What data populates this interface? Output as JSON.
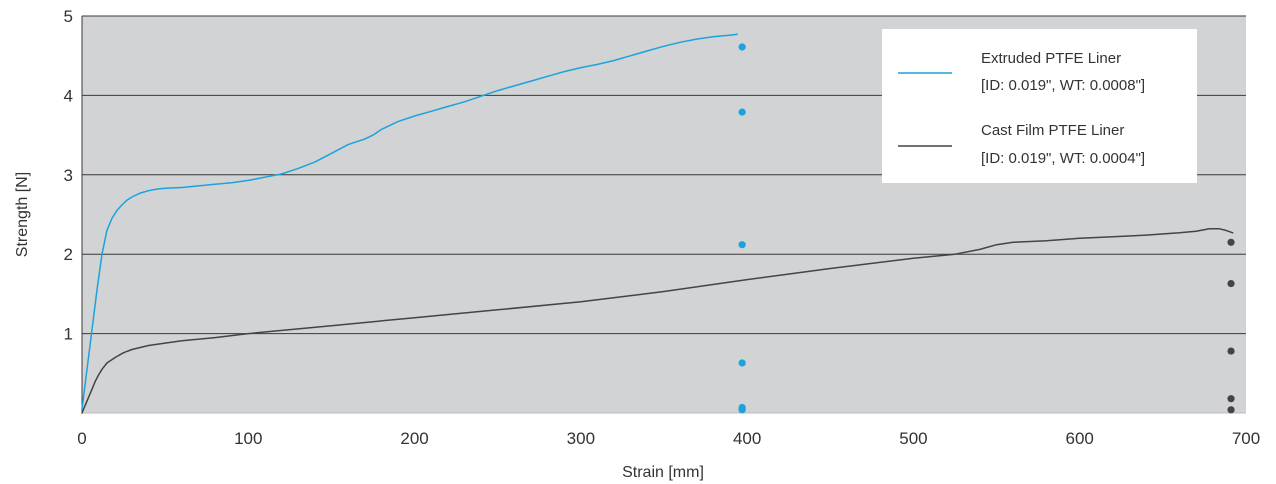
{
  "chart_data": {
    "type": "line",
    "xlabel": "Strain [mm]",
    "ylabel": "Strength [N]",
    "xlim": [
      0,
      700
    ],
    "ylim": [
      0,
      5
    ],
    "x_ticks": [
      0,
      100,
      200,
      300,
      400,
      500,
      600,
      700
    ],
    "y_ticks": [
      1,
      2,
      3,
      4,
      5
    ],
    "x_tick_labels": [
      "0",
      "100",
      "200",
      "300",
      "400",
      "500",
      "600",
      "700"
    ],
    "y_tick_labels": [
      "1",
      "2",
      "3",
      "4",
      "5"
    ],
    "grid": "horizontal",
    "legend_position": "top-right",
    "colors": {
      "plot_background": "#d2d3d5",
      "gridline": "#3a3a3a",
      "legend_background": "#ffffff"
    },
    "series": [
      {
        "name": "Extruded PTFE Liner",
        "name_detail": "[ID: 0.019\", WT: 0.0008\"]",
        "color": "#1aa3dc",
        "x": [
          0,
          3,
          6,
          9,
          12,
          15,
          18,
          21,
          24,
          27,
          30,
          35,
          40,
          45,
          50,
          60,
          70,
          80,
          90,
          100,
          110,
          120,
          130,
          140,
          150,
          160,
          170,
          175,
          180,
          190,
          200,
          210,
          220,
          230,
          240,
          250,
          260,
          270,
          280,
          290,
          300,
          310,
          320,
          330,
          340,
          350,
          360,
          370,
          380,
          385,
          390,
          394
        ],
        "y": [
          0.05,
          0.55,
          1.05,
          1.55,
          2.0,
          2.3,
          2.45,
          2.55,
          2.62,
          2.68,
          2.72,
          2.77,
          2.8,
          2.82,
          2.83,
          2.84,
          2.86,
          2.88,
          2.9,
          2.93,
          2.97,
          3.01,
          3.08,
          3.16,
          3.27,
          3.38,
          3.45,
          3.5,
          3.57,
          3.67,
          3.74,
          3.8,
          3.86,
          3.92,
          3.99,
          4.06,
          4.12,
          4.18,
          4.24,
          4.3,
          4.35,
          4.39,
          4.44,
          4.5,
          4.56,
          4.62,
          4.67,
          4.71,
          4.74,
          4.75,
          4.76,
          4.77
        ]
      },
      {
        "name": "Cast Film PTFE Liner",
        "name_detail": "[ID: 0.019\", WT: 0.0004\"]",
        "color": "#444444",
        "x": [
          0,
          2,
          4,
          6,
          8,
          10,
          12,
          15,
          20,
          25,
          30,
          40,
          50,
          60,
          80,
          100,
          150,
          200,
          250,
          300,
          350,
          400,
          450,
          500,
          525,
          540,
          550,
          560,
          580,
          600,
          620,
          640,
          660,
          670,
          678,
          684,
          688,
          692
        ],
        "y": [
          0,
          0.1,
          0.2,
          0.3,
          0.4,
          0.48,
          0.55,
          0.63,
          0.7,
          0.76,
          0.8,
          0.85,
          0.88,
          0.91,
          0.95,
          1.0,
          1.1,
          1.2,
          1.3,
          1.4,
          1.53,
          1.68,
          1.82,
          1.95,
          2.0,
          2.06,
          2.12,
          2.15,
          2.17,
          2.2,
          2.22,
          2.24,
          2.27,
          2.29,
          2.32,
          2.32,
          2.3,
          2.27
        ]
      }
    ],
    "scatter_points": [
      {
        "series": "Extruded PTFE Liner",
        "color": "#1aa3dc",
        "x": [
          397,
          397,
          397,
          397,
          397,
          397,
          397
        ],
        "y": [
          4.61,
          3.79,
          2.12,
          0.63,
          0.07,
          0.05,
          0.04
        ]
      },
      {
        "series": "Cast Film PTFE Liner",
        "color": "#444444",
        "x": [
          691,
          691,
          691,
          691,
          691
        ],
        "y": [
          2.15,
          1.63,
          0.78,
          0.18,
          0.04
        ]
      }
    ]
  }
}
